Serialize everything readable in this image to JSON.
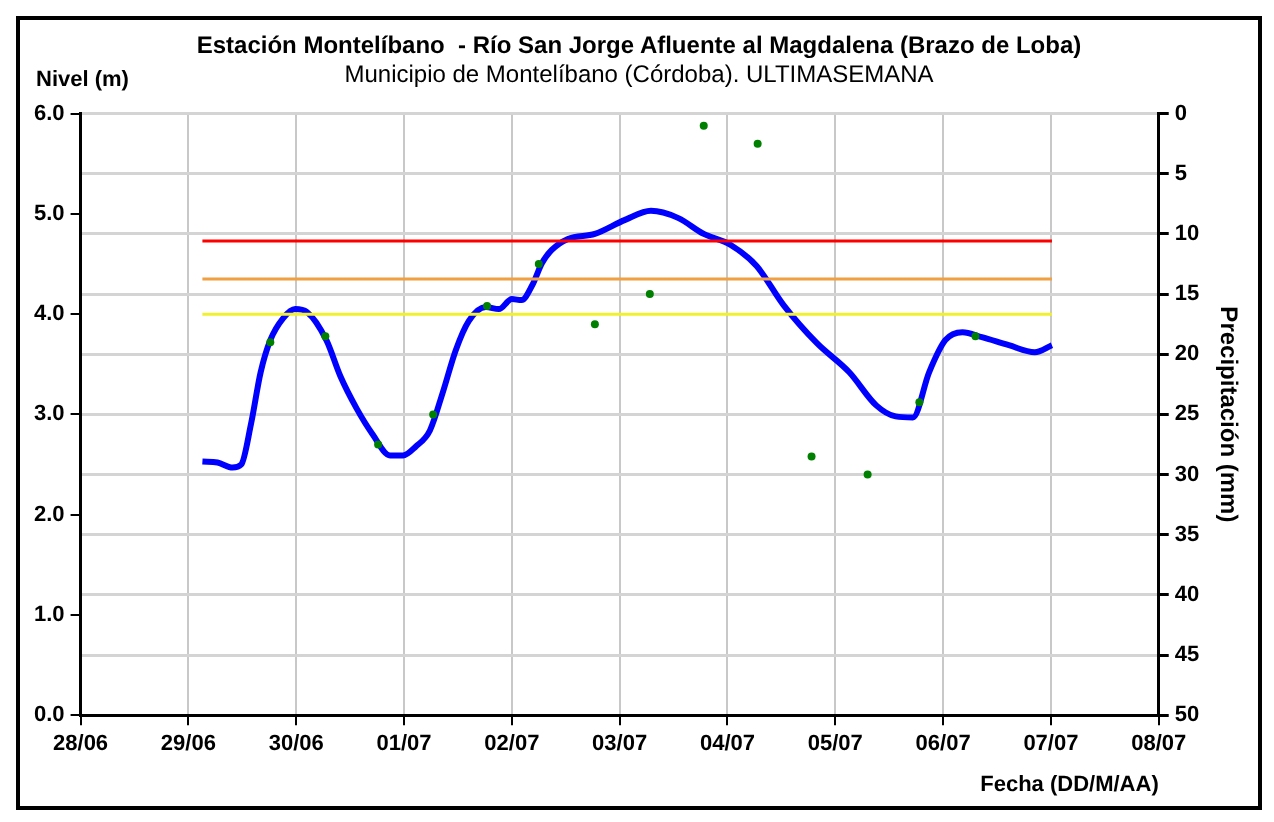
{
  "chart_data": {
    "type": "line",
    "title": "Estación Montelíbano  - Río San Jorge Afluente al Magdalena (Brazo de Loba)",
    "subtitle": "Municipio de Montelíbano (Córdoba). ULTIMASEMANA",
    "ylabel": "Nivel (m)",
    "y2label": "Precipitación (mm)",
    "xlabel": "Fecha (DD/M/AA)",
    "xlim": [
      "--06-28",
      "--07-08"
    ],
    "xticks": [
      {
        "value": "--06-28",
        "label": "28/06"
      },
      {
        "value": "--06-29",
        "label": "29/06"
      },
      {
        "value": "--06-30",
        "label": "30/06"
      },
      {
        "value": "--07-01",
        "label": "01/07"
      },
      {
        "value": "--07-02",
        "label": "02/07"
      },
      {
        "value": "--07-03",
        "label": "03/07"
      },
      {
        "value": "--07-04",
        "label": "04/07"
      },
      {
        "value": "--07-05",
        "label": "05/07"
      },
      {
        "value": "--07-06",
        "label": "06/07"
      },
      {
        "value": "--07-07",
        "label": "07/07"
      },
      {
        "value": "--07-08",
        "label": "08/07"
      }
    ],
    "ylim": [
      0,
      6
    ],
    "yticks": [
      {
        "value": 0,
        "label": "0.0"
      },
      {
        "value": 1,
        "label": "1.0"
      },
      {
        "value": 2,
        "label": "2.0"
      },
      {
        "value": 3,
        "label": "3.0"
      },
      {
        "value": 4,
        "label": "4.0"
      },
      {
        "value": 5,
        "label": "5.0"
      },
      {
        "value": 6,
        "label": "6.0"
      }
    ],
    "y2lim": [
      50,
      0
    ],
    "y2ticks": [
      0,
      5,
      10,
      15,
      20,
      25,
      30,
      35,
      40,
      45,
      50
    ],
    "grid": true,
    "series": [
      {
        "type": "line",
        "color": "#0000ff",
        "marker": "none",
        "x": [
          "--06-29T03:07",
          "--06-29T06:29",
          "--06-29T09:50",
          "--06-29T11:46",
          "--06-29T13:55",
          "--06-29T16:05",
          "--06-29T18:14",
          "--06-29T21:07",
          "--06-29T23:46",
          "--06-30T02:24",
          "--06-30T06:43",
          "--06-30T09:50",
          "--06-30T13:26",
          "--06-30T17:02",
          "--06-30T20:53",
          "--06-30T23:46",
          "--07-01T02:38",
          "--07-01T05:46",
          "--07-01T08:38",
          "--07-01T11:31",
          "--07-01T14:24",
          "--07-01T18:14",
          "--07-01T21:07",
          "--07-02T00:00",
          "--07-02T02:10",
          "--07-02T04:34",
          "--07-02T06:43",
          "--07-02T08:53",
          "--07-02T12:29",
          "--07-02T18:29",
          "--07-03T01:12",
          "--07-03T06:58",
          "--07-03T12:58",
          "--07-03T18:43",
          "--07-04T00:43",
          "--07-04T06:29",
          "--07-04T12:29",
          "--07-04T19:55",
          "--07-05T03:07",
          "--07-05T09:07",
          "--07-05T13:26",
          "--07-05T17:17",
          "--07-05T20:53",
          "--07-06T00:29",
          "--07-06T04:19",
          "--07-06T08:38",
          "--07-06T14:38",
          "--07-06T20:24",
          "--07-07T00:14"
        ],
        "values": [
          2.53,
          2.52,
          2.47,
          2.5,
          2.9,
          3.42,
          3.74,
          3.96,
          4.05,
          4.02,
          3.74,
          3.38,
          3.06,
          2.8,
          2.59,
          2.59,
          2.68,
          2.84,
          3.22,
          3.64,
          3.93,
          4.07,
          4.05,
          4.15,
          4.14,
          4.29,
          4.51,
          4.64,
          4.75,
          4.8,
          4.94,
          5.03,
          4.96,
          4.8,
          4.69,
          4.48,
          4.09,
          3.71,
          3.42,
          3.09,
          2.98,
          2.97,
          3.42,
          3.74,
          3.82,
          3.77,
          3.69,
          3.62,
          3.69
        ]
      },
      {
        "type": "scatter",
        "axis": "y2",
        "color": "#008000",
        "marker": "circle",
        "x": [
          "--06-29T18:14",
          "--06-30T06:29",
          "--06-30T18:14",
          "--07-01T06:29",
          "--07-01T18:29",
          "--07-02T06:00",
          "--07-02T18:29",
          "--07-03T06:43",
          "--07-03T18:43",
          "--07-04T06:43",
          "--07-04T18:43",
          "--07-05T07:12",
          "--07-05T18:43",
          "--07-06T07:12"
        ],
        "values": [
          19,
          18.5,
          27.5,
          25,
          16,
          12.5,
          17.5,
          15,
          1,
          2.5,
          28.5,
          30,
          24,
          18.5
        ]
      }
    ],
    "ref_lines": [
      {
        "axis": "y",
        "value": 4.73,
        "color": "#ff0000"
      },
      {
        "axis": "y",
        "value": 4.35,
        "color": "#f0a040"
      },
      {
        "axis": "y",
        "value": 4.0,
        "color": "#f0f030"
      }
    ]
  }
}
